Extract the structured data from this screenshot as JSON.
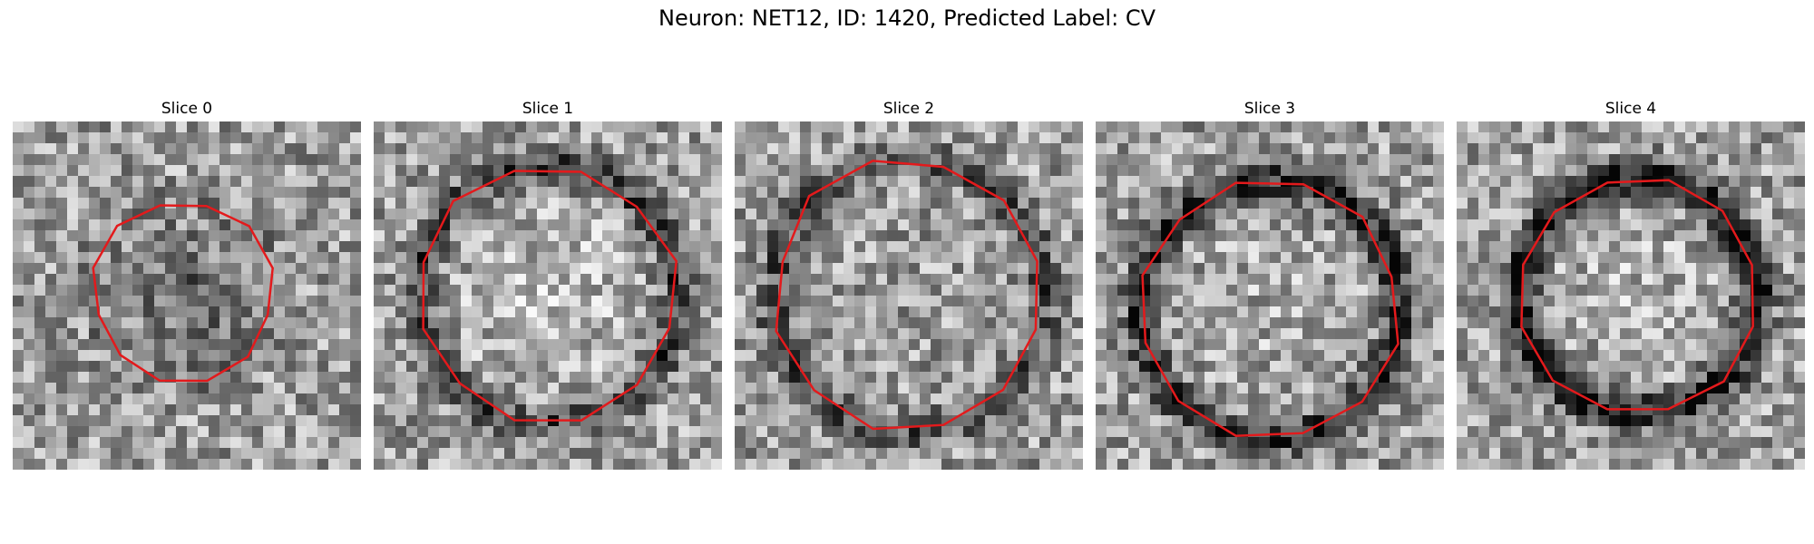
{
  "figure": {
    "title": "Neuron: NET12, ID: 1420, Predicted Label: CV"
  },
  "colors": {
    "contour": "#e31a1c",
    "background": "#ffffff"
  },
  "image_grid": {
    "pixels": 32
  },
  "panels": [
    {
      "title": "Slice 0",
      "seed": 11,
      "contour_radius": 0.26,
      "center": [
        0.49,
        0.49
      ],
      "ring_darkness": 0.1,
      "center_darkness": 0.45
    },
    {
      "title": "Slice 1",
      "seed": 23,
      "contour_radius": 0.37,
      "center": [
        0.5,
        0.5
      ],
      "ring_darkness": 0.35,
      "center_darkness": -0.25
    },
    {
      "title": "Slice 2",
      "seed": 37,
      "contour_radius": 0.39,
      "center": [
        0.5,
        0.5
      ],
      "ring_darkness": 0.3,
      "center_darkness": 0.0
    },
    {
      "title": "Slice 3",
      "seed": 41,
      "contour_radius": 0.37,
      "center": [
        0.5,
        0.54
      ],
      "ring_darkness": 0.45,
      "center_darkness": -0.1
    },
    {
      "title": "Slice 4",
      "seed": 59,
      "contour_radius": 0.34,
      "center": [
        0.52,
        0.5
      ],
      "ring_darkness": 0.55,
      "center_darkness": -0.15
    }
  ]
}
